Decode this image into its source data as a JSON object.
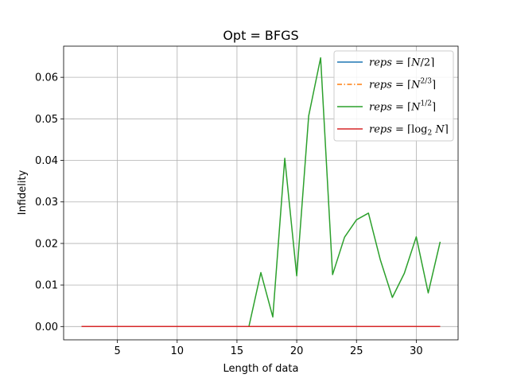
{
  "chart_data": {
    "type": "line",
    "title": "Opt = BFGS",
    "xlabel": "Length of data",
    "ylabel": "Infidelity",
    "xlim": [
      0.5,
      33.5
    ],
    "ylim": [
      -0.0032,
      0.0675
    ],
    "xticks": [
      5,
      10,
      15,
      20,
      25,
      30
    ],
    "yticks": [
      0.0,
      0.01,
      0.02,
      0.03,
      0.04,
      0.05,
      0.06
    ],
    "ytick_labels": [
      "0.00",
      "0.01",
      "0.02",
      "0.03",
      "0.04",
      "0.05",
      "0.06"
    ],
    "grid": true,
    "legend_position": "top-right",
    "x": [
      2,
      3,
      4,
      5,
      6,
      7,
      8,
      9,
      10,
      11,
      12,
      13,
      14,
      15,
      16,
      17,
      18,
      19,
      20,
      21,
      22,
      23,
      24,
      25,
      26,
      27,
      28,
      29,
      30,
      31,
      32
    ],
    "series": [
      {
        "name": "reps = ⌈N/2⌉",
        "color": "#1f77b4",
        "dash": "solid",
        "values": [
          0,
          0,
          0,
          0,
          0,
          0,
          0,
          0,
          0,
          0,
          0,
          0,
          0,
          0,
          0,
          0,
          0,
          0,
          0,
          0,
          0,
          0,
          0,
          0,
          0,
          0,
          0,
          0,
          0,
          0,
          0
        ]
      },
      {
        "name": "reps = ⌈N^(2/3)⌉",
        "color": "#ff7f0e",
        "dash": "dashdot",
        "values": [
          0,
          0,
          0,
          0,
          0,
          0,
          0,
          0,
          0,
          0,
          0,
          0,
          0,
          0,
          0,
          0,
          0,
          0,
          0,
          0,
          0,
          0,
          0,
          0,
          0,
          0,
          0,
          0,
          0,
          0,
          0
        ]
      },
      {
        "name": "reps = ⌈N^(1/2)⌉",
        "color": "#2ca02c",
        "dash": "solid",
        "values": [
          0,
          0,
          0,
          0,
          0,
          0,
          0,
          0,
          0,
          0,
          0,
          0,
          0,
          0,
          0,
          0.013,
          0.0023,
          0.0405,
          0.0122,
          0.0507,
          0.0647,
          0.0125,
          0.0215,
          0.0257,
          0.0273,
          0.016,
          0.007,
          0.0128,
          0.0216,
          0.0081,
          0.0204
        ]
      },
      {
        "name": "reps = ⌈log2 N⌉",
        "color": "#d62728",
        "dash": "solid",
        "values": [
          0,
          0,
          0,
          0,
          0,
          0,
          0,
          0,
          0,
          0,
          0,
          0,
          0,
          0,
          0,
          0,
          0,
          0,
          0,
          0,
          0,
          0,
          0,
          0,
          0,
          0,
          0,
          0,
          0,
          0,
          0
        ]
      }
    ],
    "legend_labels": [
      {
        "prefix": "reps",
        "eq": " = ",
        "lb": "⌈",
        "body": "N",
        "rest": "/2",
        "sup": "",
        "sub": "",
        "rb": "⌉"
      },
      {
        "prefix": "reps",
        "eq": " = ",
        "lb": "⌈",
        "body": "N",
        "rest": "",
        "sup": "2/3",
        "sub": "",
        "rb": "⌉"
      },
      {
        "prefix": "reps",
        "eq": " = ",
        "lb": "⌈",
        "body": "N",
        "rest": "",
        "sup": "1/2",
        "sub": "",
        "rb": "⌉"
      },
      {
        "prefix": "reps",
        "eq": " = ",
        "lb": "⌈",
        "body": "log",
        "rest": " N",
        "sup": "",
        "sub": "2",
        "rb": "⌉"
      }
    ]
  }
}
